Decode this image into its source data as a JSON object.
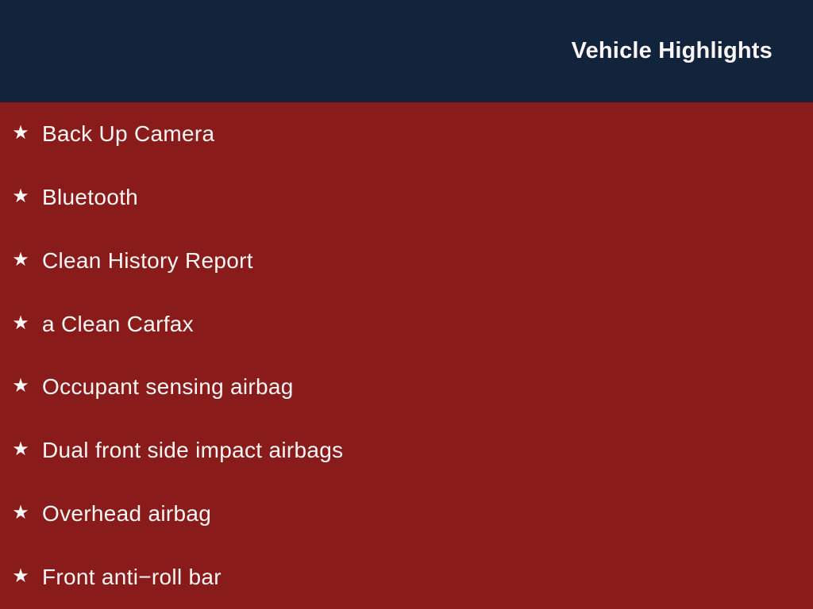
{
  "header": {
    "title": "Vehicle Highlights"
  },
  "list": {
    "bullet_glyph": "★",
    "bullet_icon_name": "star-bullet-icon",
    "items": [
      "Back Up Camera",
      "Bluetooth",
      "Clean History Report",
      "a Clean Carfax",
      "Occupant sensing airbag",
      "Dual front side impact airbags",
      "Overhead airbag",
      "Front anti−roll bar"
    ]
  },
  "colors": {
    "header_bg": "#12233C",
    "body_bg": "#8A1B1B",
    "text": "#F9F6F5"
  }
}
